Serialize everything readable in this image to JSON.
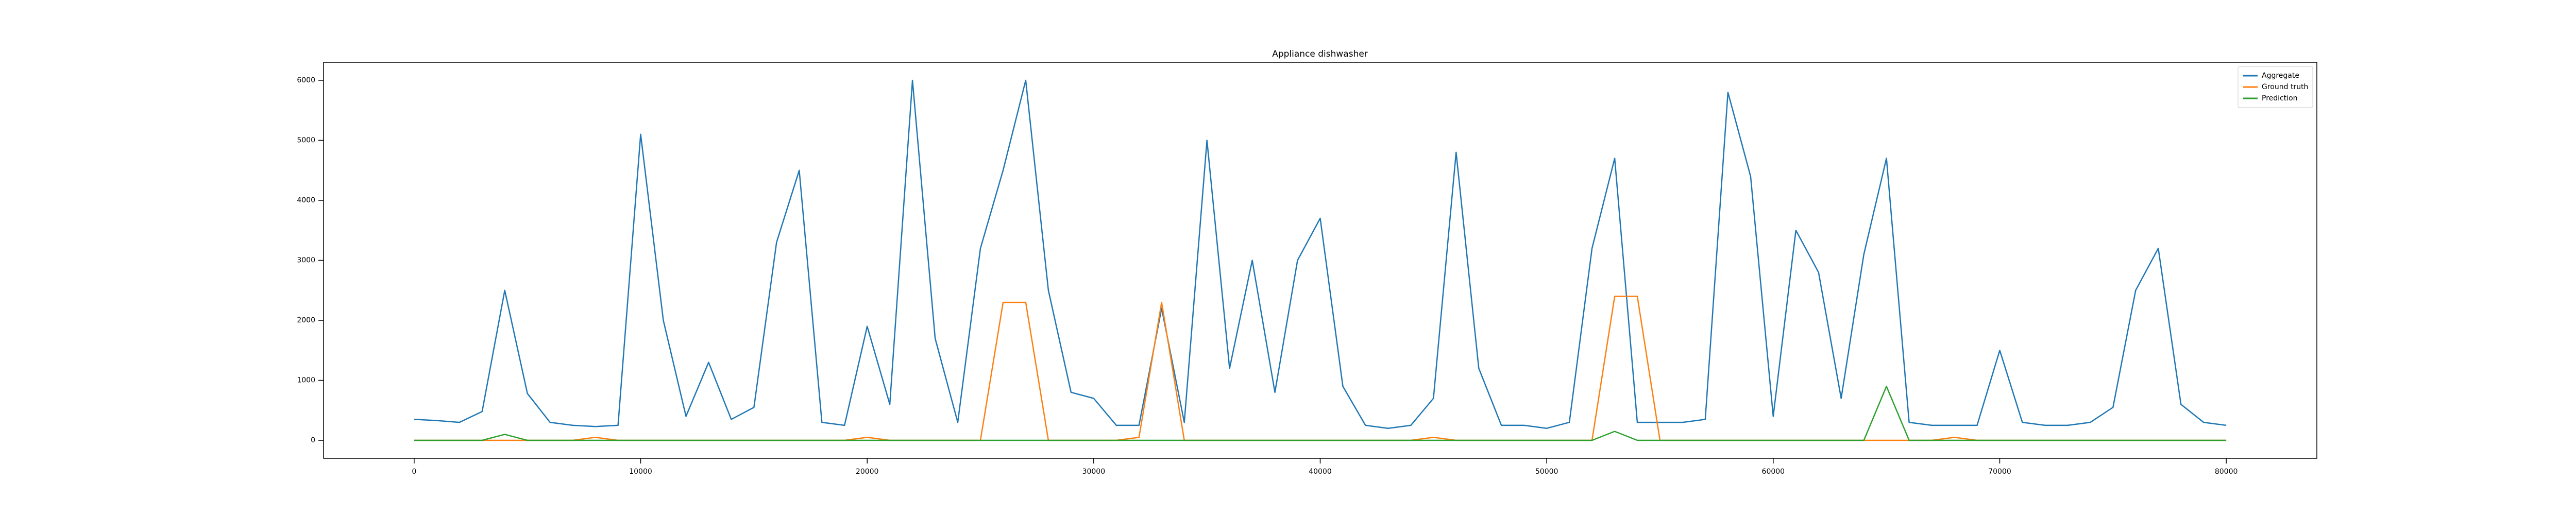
{
  "chart_data": {
    "type": "line",
    "title": "Appliance dishwasher",
    "x": [
      0,
      1000,
      2000,
      3000,
      4000,
      5000,
      6000,
      7000,
      8000,
      9000,
      10000,
      11000,
      12000,
      13000,
      14000,
      15000,
      16000,
      17000,
      18000,
      19000,
      20000,
      21000,
      22000,
      23000,
      24000,
      25000,
      26000,
      27000,
      28000,
      29000,
      30000,
      31000,
      32000,
      33000,
      34000,
      35000,
      36000,
      37000,
      38000,
      39000,
      40000,
      41000,
      42000,
      43000,
      44000,
      45000,
      46000,
      47000,
      48000,
      49000,
      50000,
      51000,
      52000,
      53000,
      54000,
      55000,
      56000,
      57000,
      58000,
      59000,
      60000,
      61000,
      62000,
      63000,
      64000,
      65000,
      66000,
      67000,
      68000,
      69000,
      70000,
      71000,
      72000,
      73000,
      74000,
      75000,
      76000,
      77000,
      78000,
      79000,
      80000
    ],
    "series": [
      {
        "name": "Aggregate",
        "color": "#1f77b4",
        "values": [
          350,
          330,
          300,
          480,
          2500,
          780,
          300,
          250,
          230,
          250,
          5100,
          2000,
          400,
          1300,
          350,
          550,
          3300,
          4500,
          300,
          250,
          1900,
          600,
          6000,
          1700,
          300,
          3200,
          4500,
          6000,
          2500,
          800,
          700,
          250,
          250,
          2200,
          300,
          5000,
          1200,
          3000,
          800,
          3000,
          3700,
          900,
          250,
          200,
          250,
          700,
          4800,
          1200,
          250,
          250,
          200,
          300,
          3200,
          4700,
          300,
          300,
          300,
          350,
          5800,
          4400,
          400,
          3500,
          2800,
          700,
          3100,
          4700,
          300,
          250,
          250,
          250,
          1500,
          300,
          250,
          250,
          300,
          550,
          2500,
          3200,
          600,
          300,
          250
        ]
      },
      {
        "name": "Ground truth",
        "color": "#ff7f0e",
        "values": [
          0,
          0,
          0,
          0,
          0,
          0,
          0,
          0,
          50,
          0,
          0,
          0,
          0,
          0,
          0,
          0,
          0,
          0,
          0,
          0,
          50,
          0,
          0,
          0,
          0,
          0,
          2300,
          2300,
          0,
          0,
          0,
          0,
          50,
          2300,
          0,
          0,
          0,
          0,
          0,
          0,
          0,
          0,
          0,
          0,
          0,
          50,
          0,
          0,
          0,
          0,
          0,
          0,
          0,
          2400,
          2400,
          0,
          0,
          0,
          0,
          0,
          0,
          0,
          0,
          0,
          0,
          0,
          0,
          0,
          50,
          0,
          0,
          0,
          0,
          0,
          0,
          0,
          0,
          0,
          0,
          0,
          0
        ]
      },
      {
        "name": "Prediction",
        "color": "#2ca02c",
        "values": [
          0,
          0,
          0,
          0,
          100,
          0,
          0,
          0,
          0,
          0,
          0,
          0,
          0,
          0,
          0,
          0,
          0,
          0,
          0,
          0,
          0,
          0,
          0,
          0,
          0,
          0,
          0,
          0,
          0,
          0,
          0,
          0,
          0,
          0,
          0,
          0,
          0,
          0,
          0,
          0,
          0,
          0,
          0,
          0,
          0,
          0,
          0,
          0,
          0,
          0,
          0,
          0,
          0,
          150,
          0,
          0,
          0,
          0,
          0,
          0,
          0,
          0,
          0,
          0,
          0,
          900,
          0,
          0,
          0,
          0,
          0,
          0,
          0,
          0,
          0,
          0,
          0,
          0,
          0,
          0,
          0
        ]
      }
    ],
    "xlim": [
      -4000,
      84000
    ],
    "ylim": [
      -300,
      6300
    ],
    "xticks": [
      0,
      10000,
      20000,
      30000,
      40000,
      50000,
      60000,
      70000,
      80000
    ],
    "yticks": [
      0,
      1000,
      2000,
      3000,
      4000,
      5000,
      6000
    ],
    "legend": "upper right",
    "grid": false
  }
}
